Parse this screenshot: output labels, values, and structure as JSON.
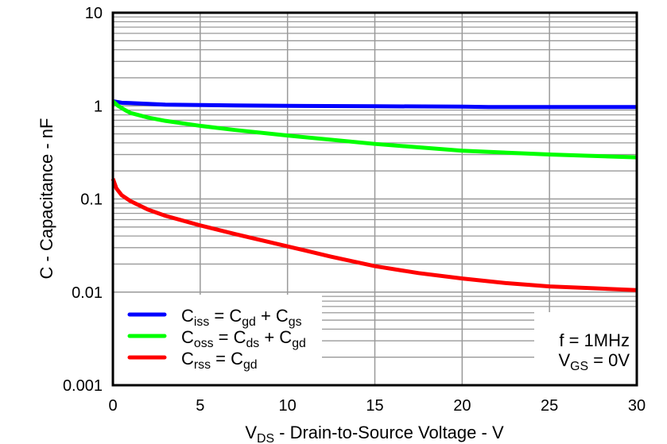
{
  "chart_data": {
    "type": "line",
    "xlabel": {
      "main": "V",
      "sub": "DS",
      "rest": " - Drain-to-Source Voltage - V"
    },
    "ylabel": "C - Capacitance - nF",
    "xlim": [
      0,
      30
    ],
    "ylim": [
      0.001,
      10
    ],
    "yscale": "log",
    "grid": true,
    "x_ticks": [
      "0",
      "5",
      "10",
      "15",
      "20",
      "25",
      "30"
    ],
    "y_ticks": [
      "0.001",
      "0.01",
      "0.1",
      "1",
      "10"
    ],
    "legend_position": "bottom-left",
    "series": [
      {
        "name": "Ciss = Cgd + Cgs",
        "legend": [
          [
            "C",
            ""
          ],
          [
            "iss",
            "sub"
          ],
          [
            " = C",
            ""
          ],
          [
            "gd",
            "sub"
          ],
          [
            " + C",
            ""
          ],
          [
            "gs",
            "sub"
          ]
        ],
        "color": "#0000ff",
        "x": [
          0,
          0.5,
          1,
          2,
          3,
          5,
          7,
          10,
          15,
          20,
          21.5,
          25,
          30
        ],
        "y": [
          1.12,
          1.08,
          1.07,
          1.05,
          1.03,
          1.02,
          1.01,
          1.0,
          0.99,
          0.98,
          0.97,
          0.97,
          0.97
        ]
      },
      {
        "name": "Coss = Cds + Cgd",
        "legend": [
          [
            "C",
            ""
          ],
          [
            "oss",
            "sub"
          ],
          [
            " = C",
            ""
          ],
          [
            "ds",
            "sub"
          ],
          [
            " + C",
            ""
          ],
          [
            "gd",
            "sub"
          ]
        ],
        "color": "#00ff00",
        "x": [
          0,
          0.3,
          0.7,
          1,
          2,
          3,
          5,
          7,
          10,
          15,
          20,
          25,
          30
        ],
        "y": [
          1.12,
          1.0,
          0.9,
          0.84,
          0.75,
          0.69,
          0.61,
          0.55,
          0.48,
          0.39,
          0.33,
          0.3,
          0.28
        ]
      },
      {
        "name": "Crss = Cgd",
        "legend": [
          [
            "C",
            ""
          ],
          [
            "rss",
            "sub"
          ],
          [
            " =  C",
            ""
          ],
          [
            "gd",
            "sub"
          ]
        ],
        "color": "#ff0000",
        "x": [
          0,
          0.2,
          0.5,
          1,
          2,
          3,
          5,
          7,
          10,
          12.5,
          15,
          17.5,
          20,
          22.5,
          25,
          27.5,
          30
        ],
        "y": [
          0.165,
          0.13,
          0.11,
          0.095,
          0.077,
          0.066,
          0.052,
          0.042,
          0.031,
          0.024,
          0.019,
          0.016,
          0.014,
          0.0125,
          0.0115,
          0.011,
          0.0105
        ]
      }
    ],
    "annotations": [
      {
        "text": "f = 1MHz"
      },
      {
        "parts": [
          [
            "V",
            ""
          ],
          [
            "GS",
            "sub"
          ],
          [
            " = 0V",
            ""
          ]
        ]
      }
    ]
  }
}
